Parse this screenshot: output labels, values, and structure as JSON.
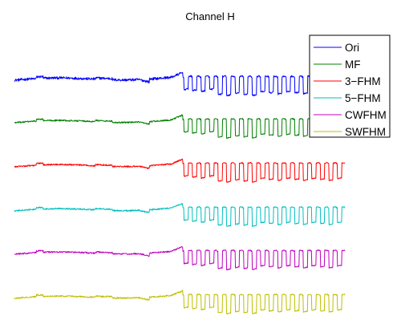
{
  "chart_data": {
    "type": "line",
    "title": "Channel H",
    "xlabel": "",
    "ylabel": "",
    "grid": false,
    "axes_visible": false,
    "legend_position": "top-right",
    "legend": [
      {
        "label": "Ori",
        "color": "#0000ff"
      },
      {
        "label": "MF",
        "color": "#008000"
      },
      {
        "label": "3−FHM",
        "color": "#ff0000"
      },
      {
        "label": "5−FHM",
        "color": "#00bfbf"
      },
      {
        "label": "CWFHM",
        "color": "#bf00bf"
      },
      {
        "label": "SWFHM",
        "color": "#bfbf00"
      }
    ],
    "series": [
      {
        "name": "Ori",
        "color": "#0000ff"
      },
      {
        "name": "MF",
        "color": "#008000"
      },
      {
        "name": "3−FHM",
        "color": "#ff0000"
      },
      {
        "name": "5−FHM",
        "color": "#00bfbf"
      },
      {
        "name": "CWFHM",
        "color": "#bf00bf"
      },
      {
        "name": "SWFHM",
        "color": "#bfbf00"
      }
    ]
  }
}
